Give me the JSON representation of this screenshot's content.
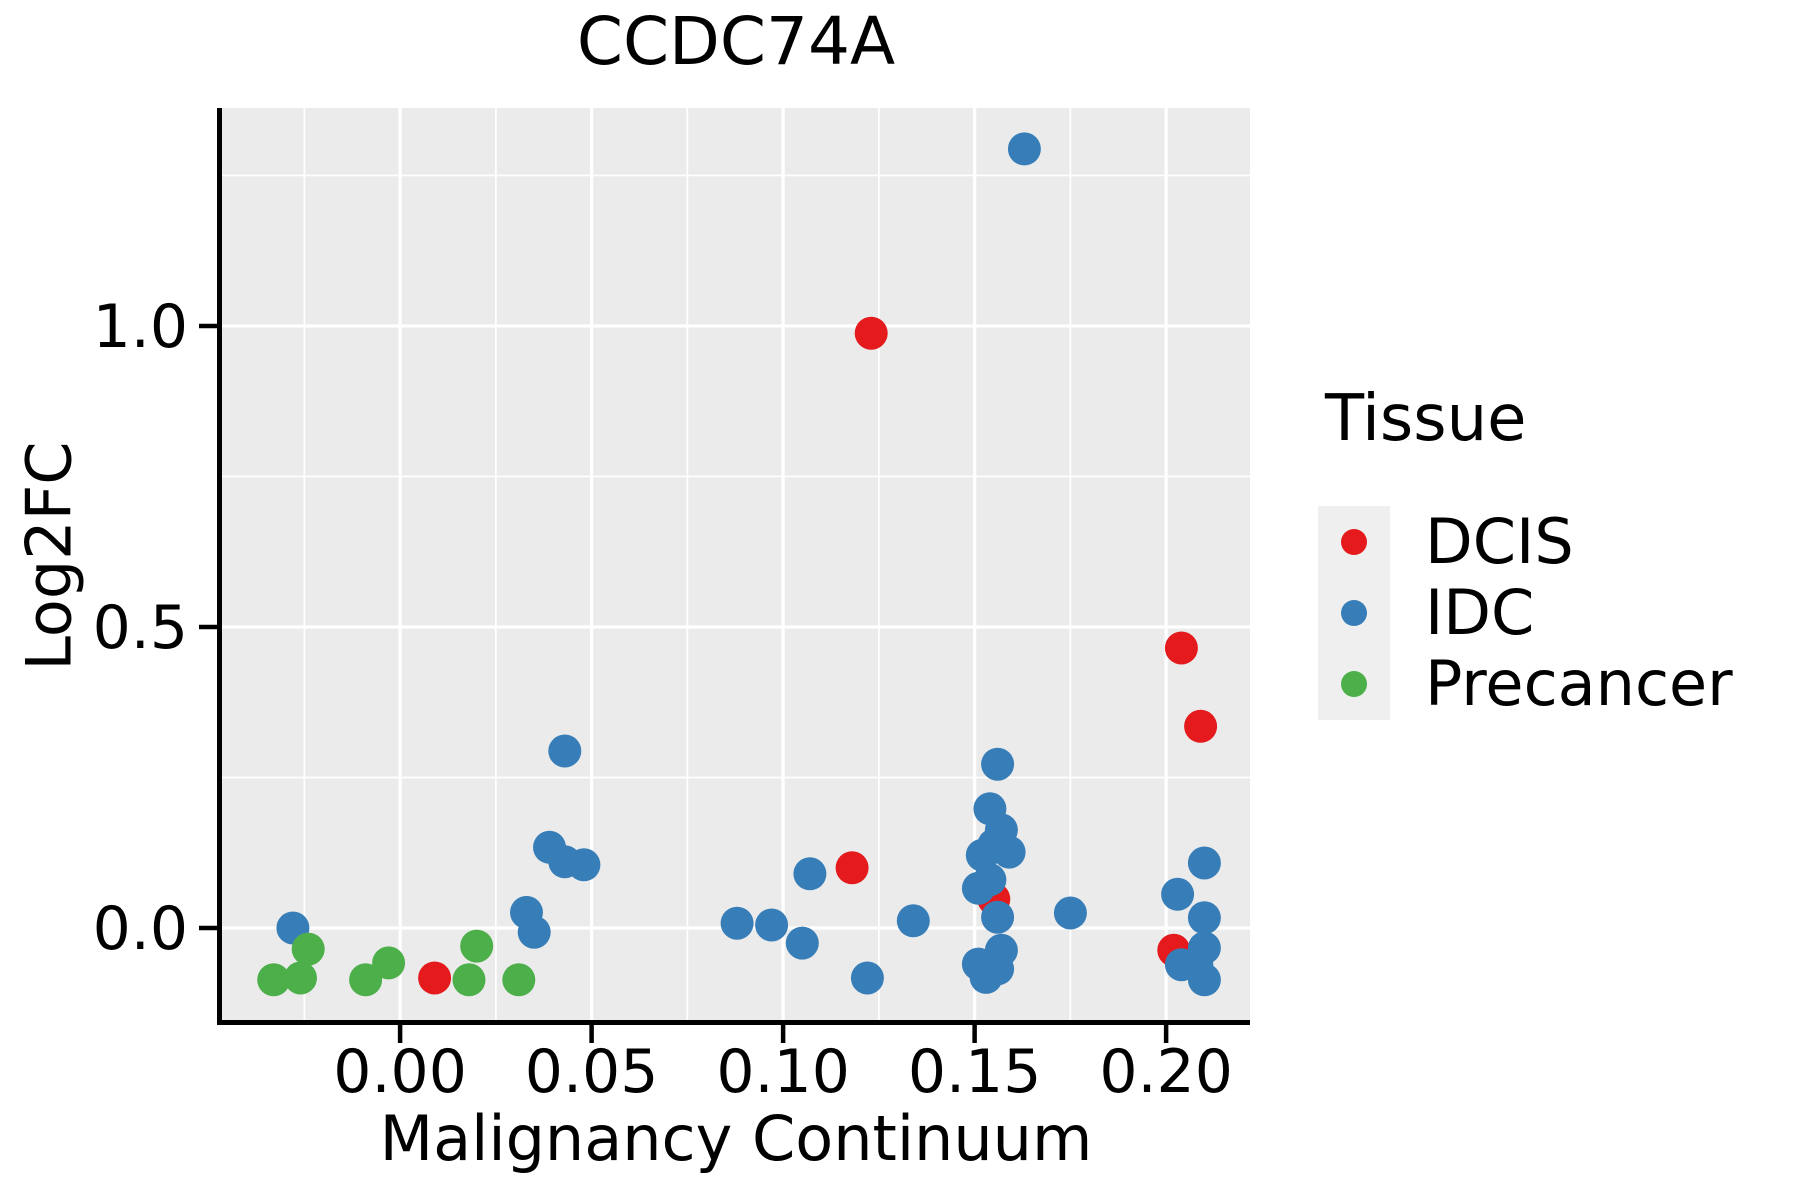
{
  "chart_data": {
    "type": "scatter",
    "title": "CCDC74A",
    "xlabel": "Malignancy Continuum",
    "ylabel": "Log2FC",
    "xlim": [
      -0.0465,
      0.2219
    ],
    "ylim": [
      -0.1528,
      1.362
    ],
    "grid": "on",
    "panel_background": "#ebebeb",
    "gridline_color": "#ffffff",
    "axis_color": "#000000",
    "x_ticks": {
      "values": [
        0.0,
        0.05,
        0.1,
        0.15,
        0.2
      ],
      "labels": [
        "0.00",
        "0.05",
        "0.10",
        "0.15",
        "0.20"
      ]
    },
    "y_ticks": {
      "values": [
        0.0,
        0.5,
        1.0
      ],
      "labels": [
        "0.0",
        "0.5",
        "1.0"
      ]
    },
    "x_minor_ticks": [
      -0.025,
      0.025,
      0.075,
      0.125,
      0.175
    ],
    "y_minor_ticks": [
      0.25,
      0.75,
      1.25
    ],
    "legend_title": "Tissue",
    "legend_position": "right",
    "series": [
      {
        "name": "DCIS",
        "color": "#e41a1c",
        "points": [
          [
            0.009,
            -0.083
          ],
          [
            0.118,
            0.1
          ],
          [
            0.123,
            0.988
          ],
          [
            0.155,
            0.048
          ],
          [
            0.204,
            0.465
          ],
          [
            0.209,
            0.335
          ],
          [
            0.202,
            -0.037
          ]
        ]
      },
      {
        "name": "IDC",
        "color": "#377eb8",
        "points": [
          [
            -0.028,
            0.0
          ],
          [
            0.033,
            0.026
          ],
          [
            0.035,
            -0.007
          ],
          [
            0.043,
            0.294
          ],
          [
            0.039,
            0.134
          ],
          [
            0.043,
            0.11
          ],
          [
            0.048,
            0.105
          ],
          [
            0.088,
            0.008
          ],
          [
            0.097,
            0.005
          ],
          [
            0.105,
            -0.025
          ],
          [
            0.107,
            0.09
          ],
          [
            0.122,
            -0.083
          ],
          [
            0.134,
            0.012
          ],
          [
            0.163,
            1.294
          ],
          [
            0.156,
            0.272
          ],
          [
            0.154,
            0.198
          ],
          [
            0.157,
            0.163
          ],
          [
            0.155,
            0.138
          ],
          [
            0.159,
            0.126
          ],
          [
            0.152,
            0.121
          ],
          [
            0.154,
            0.08
          ],
          [
            0.151,
            0.066
          ],
          [
            0.156,
            0.018
          ],
          [
            0.157,
            -0.037
          ],
          [
            0.151,
            -0.06
          ],
          [
            0.156,
            -0.068
          ],
          [
            0.153,
            -0.082
          ],
          [
            0.175,
            0.025
          ],
          [
            0.21,
            0.108
          ],
          [
            0.203,
            0.056
          ],
          [
            0.21,
            0.017
          ],
          [
            0.21,
            -0.033
          ],
          [
            0.204,
            -0.061
          ],
          [
            0.208,
            -0.061
          ],
          [
            0.21,
            -0.086
          ]
        ]
      },
      {
        "name": "Precancer",
        "color": "#4daf4a",
        "points": [
          [
            -0.033,
            -0.086
          ],
          [
            -0.026,
            -0.083
          ],
          [
            -0.024,
            -0.035
          ],
          [
            -0.009,
            -0.086
          ],
          [
            -0.003,
            -0.058
          ],
          [
            0.018,
            -0.086
          ],
          [
            0.02,
            -0.03
          ],
          [
            0.031,
            -0.086
          ]
        ]
      }
    ]
  },
  "legend": {
    "title": "Tissue",
    "items": [
      {
        "label": "DCIS",
        "color": "#e41a1c"
      },
      {
        "label": "IDC",
        "color": "#377eb8"
      },
      {
        "label": "Precancer",
        "color": "#4daf4a"
      }
    ]
  }
}
